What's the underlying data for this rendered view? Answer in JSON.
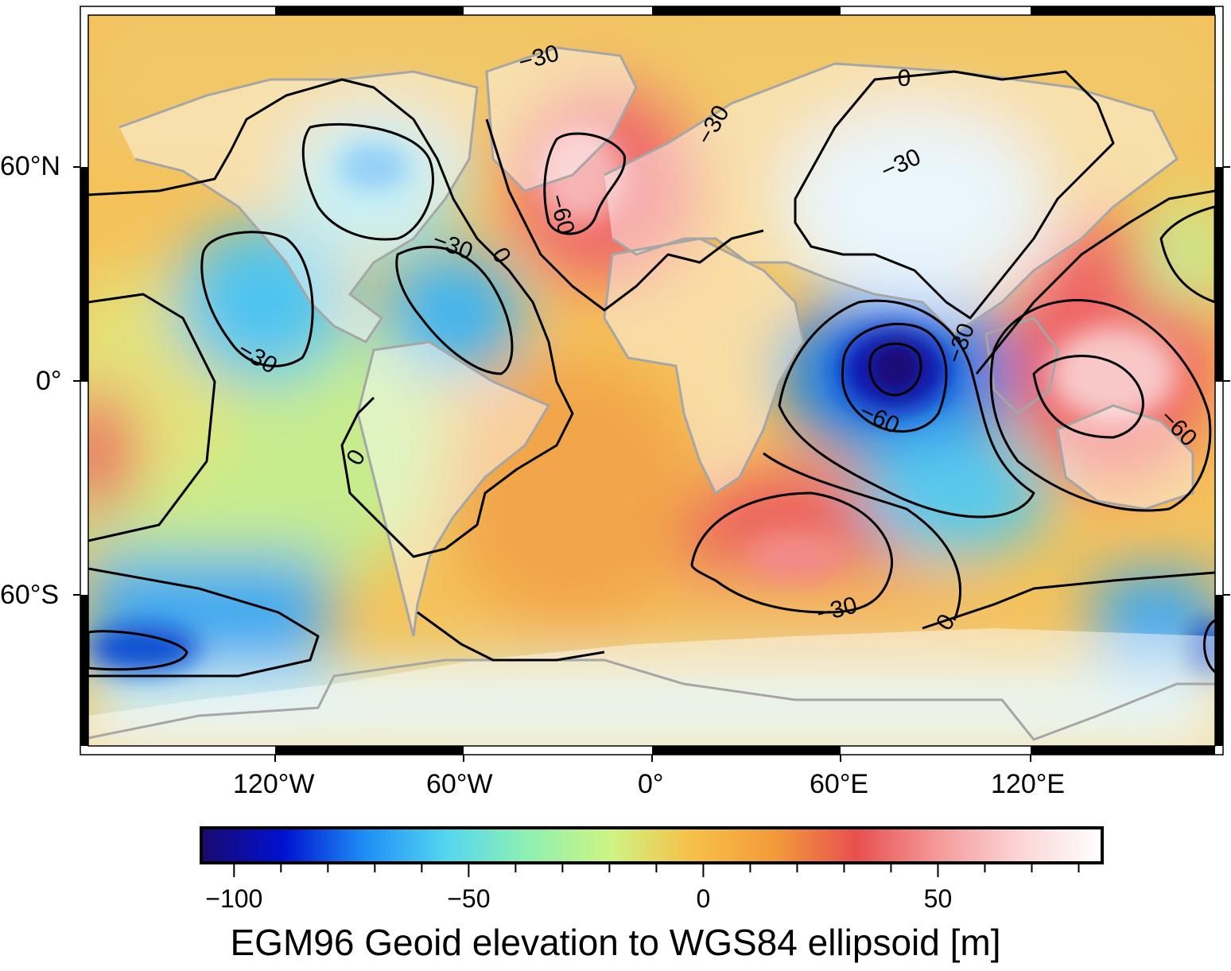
{
  "map": {
    "projection": "equirectangular",
    "lon_range": [
      -180,
      180
    ],
    "lat_range": [
      -90,
      90
    ],
    "longitude_labels": [
      "120°W",
      "60°W",
      "0°",
      "60°E",
      "120°E"
    ],
    "latitude_labels": [
      "60°N",
      "0°",
      "60°S"
    ],
    "contour_interval_m": 30,
    "contour_labels": [
      "0",
      "-30",
      "-60",
      "-30",
      "0",
      "-30",
      "-60",
      "-30",
      "-30",
      "-60",
      "-30",
      "0",
      "0",
      "-30"
    ],
    "contour_label_set": [
      "0",
      "−30",
      "−60"
    ],
    "coastline_color": "#a6a6a6",
    "contour_color": "#000000"
  },
  "colorbar": {
    "title": "EGM96 Geoid elevation to WGS84 ellipsoid [m]",
    "tick_labels": [
      "−100",
      "−50",
      "0",
      "50"
    ],
    "tick_values": [
      -100,
      -50,
      0,
      50
    ],
    "range": [
      -107,
      85
    ],
    "colors": [
      "#1a0a6e",
      "#0011d0",
      "#1e8ff5",
      "#55d6f0",
      "#8ff0b0",
      "#cef483",
      "#f6c048",
      "#f29a3a",
      "#e8504f",
      "#f49a9a",
      "#fbd6d6",
      "#ffffff"
    ]
  },
  "chart_data": {
    "type": "heatmap",
    "title": "",
    "xlabel": "",
    "ylabel": "",
    "xlim": [
      -180,
      180
    ],
    "ylim": [
      -90,
      90
    ],
    "colorbar_label": "EGM96 Geoid elevation to WGS84 ellipsoid [m]",
    "value_range": [
      -107,
      85
    ],
    "notable_features": [
      {
        "label": "-60",
        "lon": 75,
        "lat": 5
      },
      {
        "label": "-30",
        "lon": -95,
        "lat": 5
      },
      {
        "label": "-30",
        "lon": -60,
        "lat": 30
      },
      {
        "label": "-60",
        "lon": -30,
        "lat": 60
      },
      {
        "label": "-60",
        "lon": 155,
        "lat": -5
      },
      {
        "label": "-30",
        "lon": 60,
        "lat": -70
      }
    ]
  }
}
